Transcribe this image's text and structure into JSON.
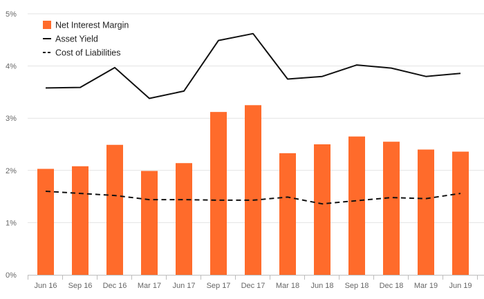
{
  "chart_data": {
    "type": "bar",
    "categories": [
      "Jun 16",
      "Sep 16",
      "Dec 16",
      "Mar 17",
      "Jun 17",
      "Sep 17",
      "Dec 17",
      "Mar 18",
      "Jun 18",
      "Sep 18",
      "Dec 18",
      "Mar 19",
      "Jun 19"
    ],
    "series": [
      {
        "name": "Net Interest Margin",
        "type": "bar",
        "color": "#ff6b2b",
        "values": [
          2.03,
          2.08,
          2.49,
          1.99,
          2.14,
          3.12,
          3.25,
          2.33,
          2.5,
          2.65,
          2.55,
          2.4,
          2.36
        ]
      },
      {
        "name": "Asset Yield",
        "type": "line",
        "style": "solid",
        "color": "#111111",
        "values": [
          3.58,
          3.59,
          3.97,
          3.38,
          3.52,
          4.49,
          4.62,
          3.75,
          3.8,
          4.02,
          3.96,
          3.8,
          3.86
        ]
      },
      {
        "name": "Cost of Liabilities",
        "type": "line",
        "style": "dashed",
        "color": "#111111",
        "values": [
          1.6,
          1.56,
          1.52,
          1.44,
          1.44,
          1.43,
          1.43,
          1.49,
          1.36,
          1.42,
          1.48,
          1.46,
          1.56
        ]
      }
    ],
    "ylim": [
      0,
      5
    ],
    "yticks": [
      "0%",
      "1%",
      "2%",
      "3%",
      "4%",
      "5%"
    ],
    "grid": "horizontal",
    "legend_position": "top-left",
    "title": "",
    "xlabel": "",
    "ylabel": ""
  }
}
